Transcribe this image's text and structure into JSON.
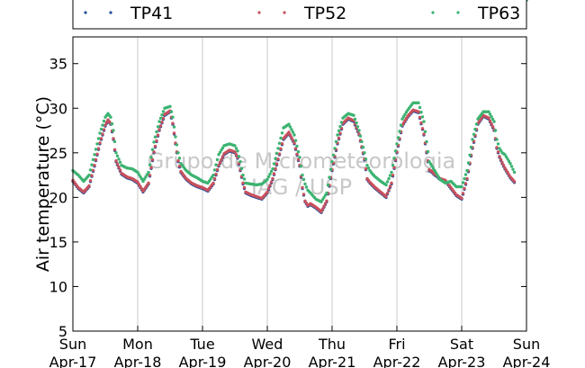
{
  "chart_data": {
    "type": "scatter",
    "title": "",
    "ylabel": "Air temperature (°C)",
    "xlabel": "",
    "ylim": [
      5,
      38
    ],
    "yticks": [
      5,
      10,
      15,
      20,
      25,
      30,
      35
    ],
    "xlim": [
      "2016-04-17",
      "2016-04-24"
    ],
    "xticks": [
      {
        "day": "Sun",
        "date": "Apr-17"
      },
      {
        "day": "Mon",
        "date": "Apr-18"
      },
      {
        "day": "Tue",
        "date": "Apr-19"
      },
      {
        "day": "Wed",
        "date": "Apr-20"
      },
      {
        "day": "Thu",
        "date": "Apr-21"
      },
      {
        "day": "Fri",
        "date": "Apr-22"
      },
      {
        "day": "Sat",
        "date": "Apr-23"
      },
      {
        "day": "Sun",
        "date": "Apr-24"
      }
    ],
    "grid": "vertical",
    "legend": {
      "placement": "top",
      "columns": 3
    },
    "x_hours": [
      0,
      2,
      4,
      6,
      8,
      10,
      12,
      13,
      14,
      15,
      16,
      18,
      20,
      22,
      24,
      26,
      28,
      30,
      32,
      34,
      36,
      37,
      38,
      39,
      40,
      42,
      44,
      46,
      48,
      50,
      52,
      54,
      56,
      58,
      60,
      61,
      62,
      63,
      64,
      66,
      68,
      70,
      72,
      74,
      76,
      78,
      80,
      82,
      84,
      85,
      86,
      87,
      88,
      90,
      92,
      94,
      96,
      98,
      100,
      102,
      104,
      106,
      108,
      109,
      110,
      111,
      112,
      114,
      116,
      118,
      120,
      122,
      124,
      126,
      128,
      130,
      132,
      133,
      134,
      135,
      136,
      138,
      140,
      142,
      144,
      146,
      148,
      150,
      152,
      154,
      156,
      157,
      158,
      159,
      160,
      162,
      164,
      166,
      168
    ],
    "series": [
      {
        "name": "TP41",
        "color": "#1f4e9c",
        "values": [
          21.8,
          21.0,
          20.5,
          21.2,
          23.5,
          26.0,
          28.0,
          28.6,
          28.2,
          26.5,
          24.0,
          22.6,
          22.2,
          22.0,
          21.6,
          20.6,
          21.5,
          25.0,
          27.5,
          29.2,
          29.6,
          28.2,
          26.0,
          24.0,
          22.8,
          22.0,
          21.5,
          21.2,
          21.0,
          20.7,
          21.5,
          23.5,
          24.8,
          25.2,
          25.0,
          24.4,
          23.0,
          21.5,
          20.5,
          20.2,
          20.0,
          19.8,
          20.5,
          22.0,
          24.2,
          26.5,
          27.2,
          26.0,
          23.5,
          21.0,
          19.5,
          19.0,
          19.2,
          18.8,
          18.3,
          19.5,
          23.0,
          26.0,
          28.2,
          28.8,
          28.5,
          27.0,
          24.2,
          22.0,
          21.6,
          21.3,
          21.0,
          20.5,
          20.0,
          21.5,
          25.0,
          28.0,
          29.0,
          29.7,
          29.5,
          27.0,
          23.0,
          22.8,
          22.5,
          22.3,
          22.0,
          21.8,
          21.0,
          20.2,
          19.8,
          22.0,
          25.5,
          28.2,
          29.1,
          28.8,
          27.5,
          25.5,
          24.5,
          23.8,
          23.2,
          22.2,
          21.5
        ]
      },
      {
        "name": "TP52",
        "color": "#c8505c",
        "values": [
          21.9,
          21.1,
          20.6,
          21.3,
          23.6,
          26.1,
          28.1,
          28.7,
          28.3,
          26.6,
          24.1,
          22.7,
          22.3,
          22.1,
          21.7,
          20.7,
          21.6,
          25.1,
          27.6,
          29.3,
          29.7,
          28.3,
          26.1,
          24.1,
          22.9,
          22.1,
          21.6,
          21.3,
          21.1,
          20.8,
          21.6,
          23.6,
          24.9,
          25.3,
          25.1,
          24.5,
          23.1,
          21.6,
          20.6,
          20.3,
          20.1,
          19.9,
          20.6,
          22.1,
          24.3,
          26.6,
          27.3,
          26.1,
          23.6,
          21.1,
          19.6,
          19.1,
          19.3,
          18.9,
          18.4,
          19.6,
          23.1,
          26.1,
          28.3,
          28.9,
          28.6,
          27.1,
          24.3,
          22.1,
          21.7,
          21.4,
          21.1,
          20.6,
          20.1,
          21.6,
          25.1,
          28.1,
          29.1,
          29.8,
          29.6,
          27.1,
          23.1,
          22.9,
          22.6,
          22.4,
          22.1,
          21.9,
          21.1,
          20.3,
          19.9,
          22.1,
          25.6,
          28.3,
          29.2,
          28.9,
          27.6,
          25.6,
          24.6,
          23.9,
          23.3,
          22.3,
          21.6
        ]
      },
      {
        "name": "TP63",
        "color": "#3cb371",
        "values": [
          23.0,
          22.5,
          21.8,
          22.5,
          24.8,
          27.2,
          29.0,
          29.4,
          29.0,
          27.5,
          25.0,
          23.6,
          23.3,
          23.2,
          22.8,
          21.8,
          22.8,
          26.2,
          28.5,
          30.0,
          30.2,
          29.0,
          26.8,
          25.0,
          23.8,
          23.0,
          22.5,
          22.2,
          21.8,
          21.6,
          22.5,
          24.8,
          25.8,
          26.0,
          25.8,
          25.2,
          24.0,
          22.5,
          21.6,
          21.5,
          21.4,
          21.5,
          22.0,
          23.2,
          25.5,
          27.8,
          28.2,
          27.0,
          24.5,
          22.5,
          21.5,
          20.8,
          20.5,
          19.8,
          19.5,
          20.5,
          24.0,
          27.0,
          28.9,
          29.4,
          29.2,
          27.5,
          25.0,
          23.6,
          23.0,
          22.6,
          22.3,
          21.8,
          21.4,
          22.8,
          26.0,
          28.8,
          29.8,
          30.6,
          30.6,
          28.5,
          24.0,
          23.5,
          23.0,
          22.5,
          22.0,
          21.6,
          21.8,
          21.2,
          21.2,
          23.0,
          26.5,
          28.8,
          29.6,
          29.6,
          28.5,
          26.5,
          25.5,
          25.0,
          24.8,
          23.8,
          22.5
        ]
      }
    ],
    "annotations": [
      "Grupo de Micrometeorologia",
      "IAG / USP"
    ]
  }
}
